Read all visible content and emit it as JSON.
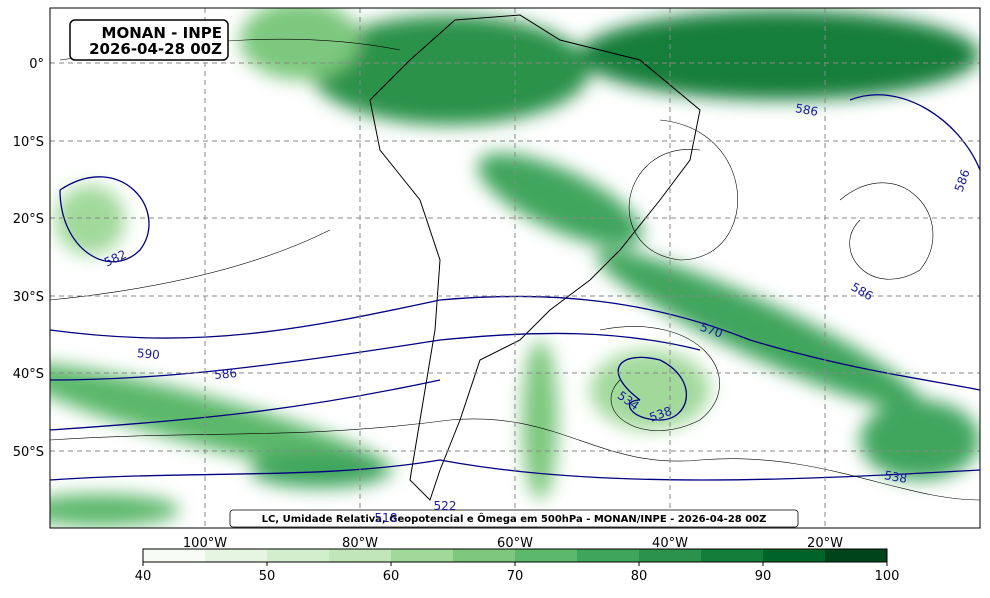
{
  "map": {
    "title": [
      "MONAN - INPE",
      "2026-04-28 00Z"
    ],
    "lat_labels": [
      "0°",
      "10°S",
      "20°S",
      "30°S",
      "40°S",
      "50°S"
    ],
    "lon_labels": [
      "100°W",
      "80°W",
      "60°W",
      "40°W",
      "20°W"
    ],
    "contour_labels": [
      "582",
      "590",
      "586",
      "586",
      "586",
      "570",
      "534",
      "538",
      "538",
      "522",
      "518",
      "586"
    ],
    "caption": "LC, Umidade Relativa, Geopotencial e Ômega em 500hPa - MONAN/INPE - 2026-04-28 00Z"
  },
  "colorbar": {
    "lim": [
      40,
      100
    ],
    "ticks": [
      40,
      50,
      60,
      70,
      80,
      90,
      100
    ],
    "colors": [
      "#f7fcf5",
      "#e5f5e0",
      "#d3eecd",
      "#c0e6b9",
      "#a1d99b",
      "#7dc87e",
      "#5cb86b",
      "#3fa55d",
      "#2a924a",
      "#137e3a",
      "#006428",
      "#00441b"
    ]
  }
}
